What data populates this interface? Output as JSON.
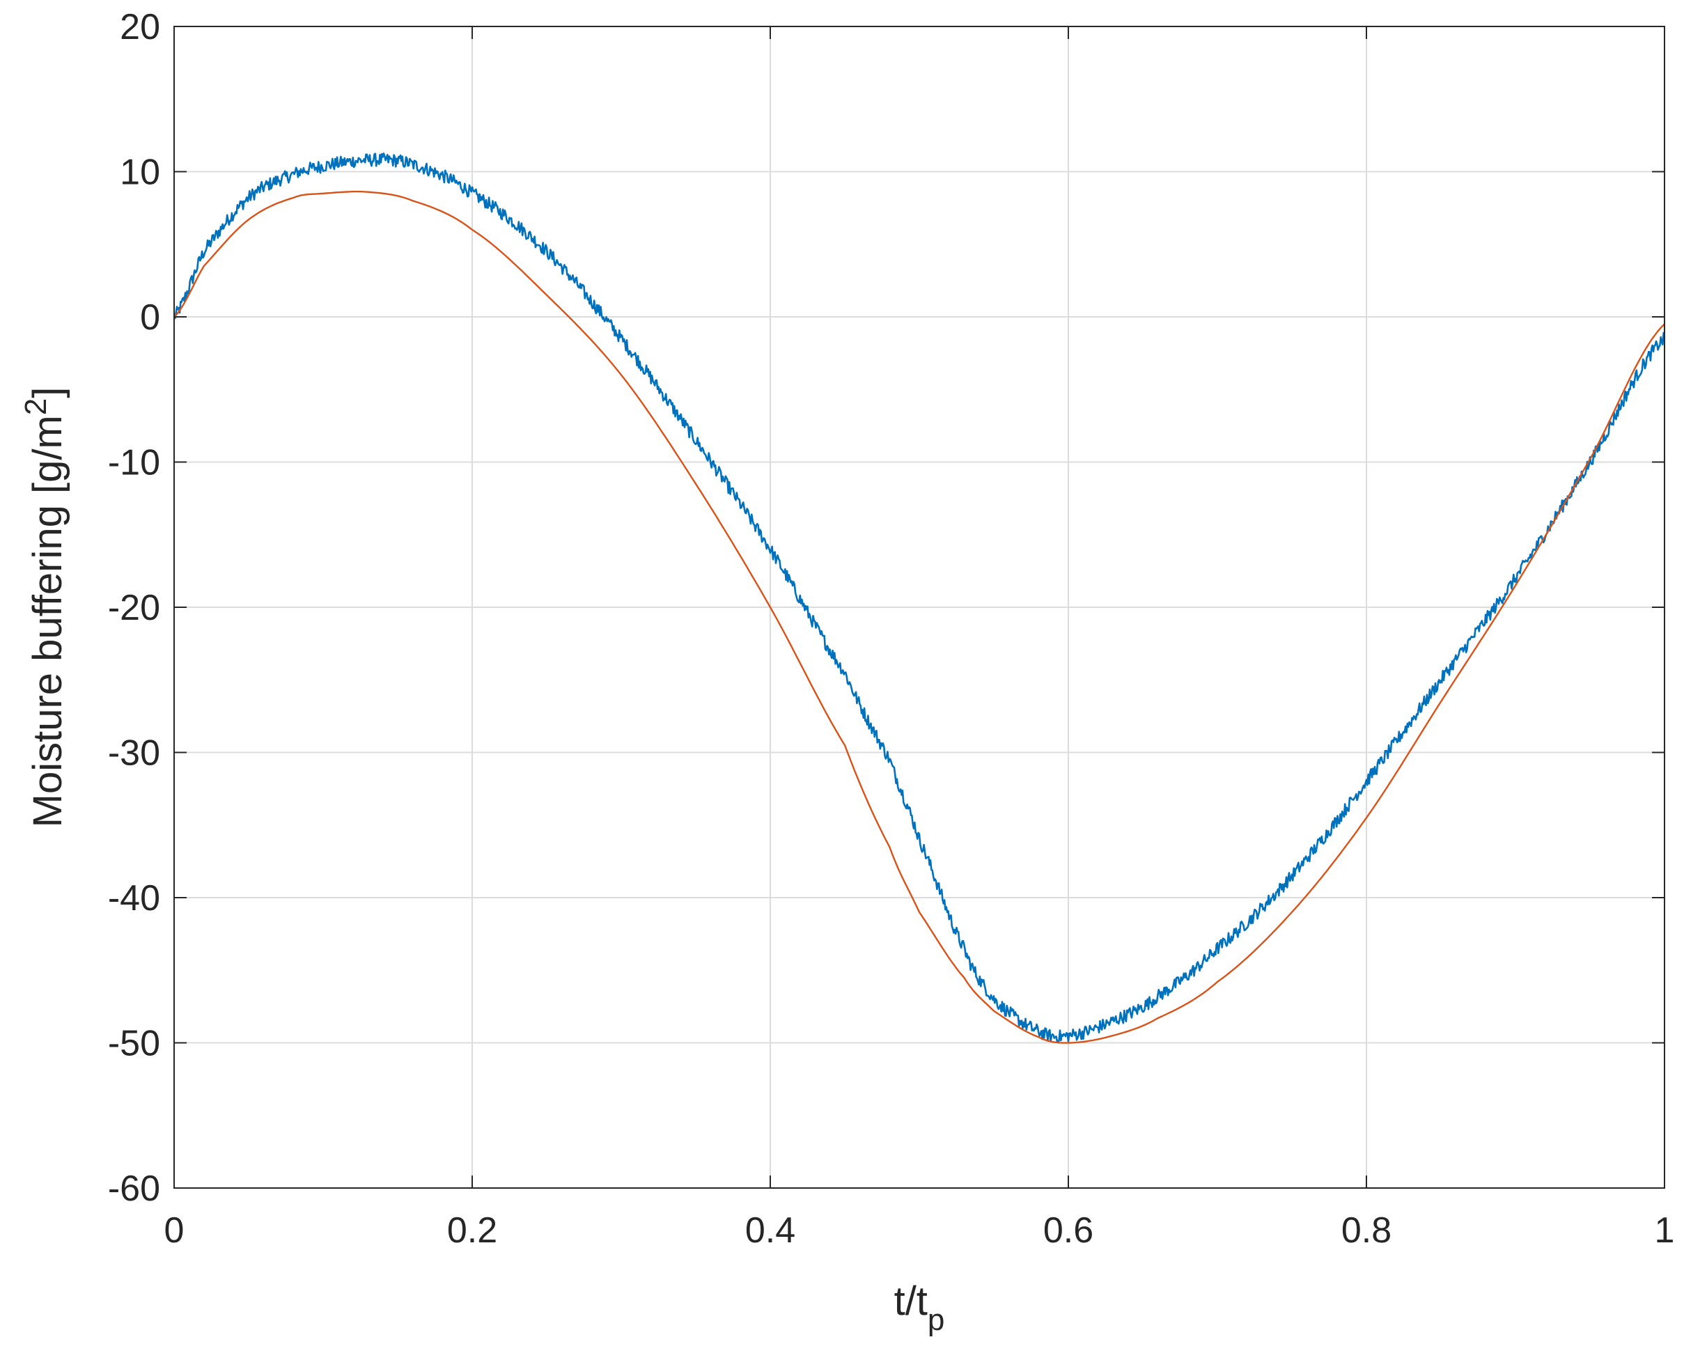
{
  "chart_data": {
    "type": "line",
    "xlabel": {
      "main": "t/t",
      "sub": "p"
    },
    "ylabel": {
      "main": "Moisture buffering [g/m",
      "sup": "2",
      "tail": "]"
    },
    "xlim": [
      0,
      1
    ],
    "ylim": [
      -60,
      20
    ],
    "xticks": [
      0,
      0.2,
      0.4,
      0.6,
      0.8,
      1
    ],
    "xtick_labels": [
      "0",
      "0.2",
      "0.4",
      "0.6",
      "0.8",
      "1"
    ],
    "yticks": [
      -60,
      -50,
      -40,
      -30,
      -20,
      -10,
      0,
      10,
      20
    ],
    "ytick_labels": [
      "-60",
      "-50",
      "-40",
      "-30",
      "-20",
      "-10",
      "0",
      "10",
      "20"
    ],
    "grid": true,
    "legend": "none",
    "colors": {
      "series_1": "#0072BD",
      "series_2": "#D95319",
      "grid": "#dcdcdc",
      "axis": "#262626"
    },
    "series": [
      {
        "style": "noisy",
        "x": [
          0,
          0.02,
          0.05,
          0.08,
          0.1,
          0.13,
          0.16,
          0.2,
          0.25,
          0.3,
          0.35,
          0.4,
          0.45,
          0.48,
          0.5,
          0.53,
          0.55,
          0.58,
          0.6,
          0.63,
          0.66,
          0.7,
          0.75,
          0.8,
          0.85,
          0.9,
          0.95,
          1.0
        ],
        "y": [
          0,
          4.5,
          8.2,
          9.8,
          10.4,
          10.8,
          10.5,
          8.5,
          4.5,
          -1.5,
          -8.5,
          -16.0,
          -24.5,
          -30.5,
          -36.0,
          -43.5,
          -47.0,
          -49.2,
          -49.5,
          -48.5,
          -46.8,
          -43.5,
          -38.5,
          -32.0,
          -25.0,
          -18.0,
          -10.0,
          -1.5
        ]
      },
      {
        "style": "smooth",
        "x": [
          0,
          0.02,
          0.05,
          0.08,
          0.1,
          0.13,
          0.16,
          0.2,
          0.25,
          0.3,
          0.35,
          0.4,
          0.45,
          0.48,
          0.5,
          0.53,
          0.55,
          0.58,
          0.6,
          0.63,
          0.66,
          0.7,
          0.75,
          0.8,
          0.85,
          0.9,
          0.95,
          1.0
        ],
        "y": [
          0,
          3.5,
          6.7,
          8.2,
          8.5,
          8.6,
          8.0,
          6.0,
          1.5,
          -4.0,
          -11.5,
          -20.0,
          -29.5,
          -36.5,
          -41.0,
          -45.5,
          -47.8,
          -49.6,
          -50.0,
          -49.5,
          -48.3,
          -45.8,
          -41.0,
          -34.5,
          -26.5,
          -18.5,
          -9.8,
          -0.5
        ]
      }
    ]
  }
}
